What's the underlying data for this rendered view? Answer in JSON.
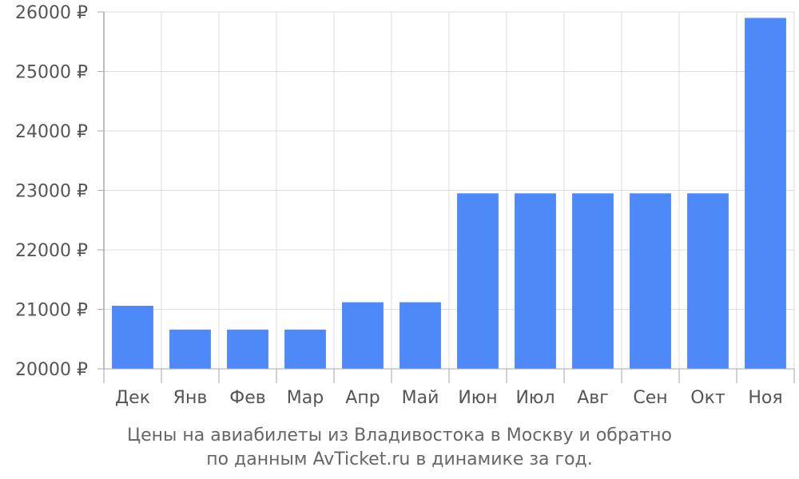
{
  "colors": {
    "bar": "#4d8af8",
    "grid": "#dddddd",
    "axis": "#aaaaaa",
    "text": "#555555"
  },
  "chart_data": {
    "type": "bar",
    "categories": [
      "Дек",
      "Янв",
      "Фев",
      "Мар",
      "Апр",
      "Май",
      "Июн",
      "Июл",
      "Авг",
      "Сен",
      "Окт",
      "Ноя"
    ],
    "values": [
      21060,
      20660,
      20660,
      20660,
      21120,
      21120,
      22950,
      22950,
      22950,
      22950,
      22950,
      25900
    ],
    "ylim": [
      20000,
      26000
    ],
    "yticks": [
      20000,
      21000,
      22000,
      23000,
      24000,
      25000,
      26000
    ],
    "ytick_labels": [
      "20000 ₽",
      "21000 ₽",
      "22000 ₽",
      "23000 ₽",
      "24000 ₽",
      "25000 ₽",
      "26000 ₽"
    ],
    "grid": true,
    "legend": "none"
  },
  "caption": {
    "line1": "Цены на авиабилеты из Владивостока в Москву и обратно",
    "line2": "по данным AvTicket.ru в динамике за год."
  }
}
